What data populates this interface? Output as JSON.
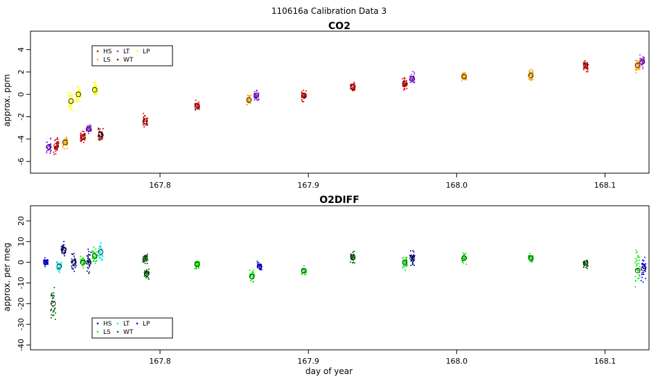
{
  "suptitle": "110616a   Calibration Data 3",
  "xlabel": "day of year",
  "legend_labels": [
    "HS",
    "LT",
    "LP",
    "LS",
    "WT"
  ],
  "colors": {
    "co2": {
      "HS": "#dd0000",
      "LS": "#ffa500",
      "LT": "#a020f0",
      "WT": "#8b0000",
      "LP": "#ffff00"
    },
    "o2": {
      "HS": "#00008b",
      "LS": "#00ee00",
      "LT": "#00eeee",
      "WT": "#006400",
      "LP": "#0000ff"
    }
  },
  "chart_data": [
    {
      "type": "scatter",
      "title": "CO2",
      "ylabel": "approx. ppm",
      "xlim": [
        167.715,
        168.125
      ],
      "ylim": [
        -6.8,
        5.4
      ],
      "xticks": [
        "167.8",
        "167.9",
        "168.0",
        "168.1"
      ],
      "yticks": [
        "-6",
        "-4",
        "-2",
        "0",
        "2",
        "4"
      ],
      "legend": {
        "position": "top-left",
        "entries": [
          "HS",
          "LS",
          "LT",
          "WT",
          "LP"
        ]
      },
      "clusters": [
        {
          "x": 167.725,
          "series": "LT",
          "mean": -4.7,
          "spread": 0.9
        },
        {
          "x": 167.73,
          "series": "HS",
          "mean": -4.6,
          "spread": 0.9
        },
        {
          "x": 167.736,
          "series": "LS",
          "mean": -4.3,
          "spread": 0.7
        },
        {
          "x": 167.74,
          "series": "LP",
          "mean": -0.6,
          "spread": 1.1
        },
        {
          "x": 167.745,
          "series": "LP",
          "mean": 0.0,
          "spread": 0.9
        },
        {
          "x": 167.748,
          "series": "HS",
          "mean": -3.8,
          "spread": 0.6
        },
        {
          "x": 167.752,
          "series": "LT",
          "mean": -3.1,
          "spread": 0.5
        },
        {
          "x": 167.756,
          "series": "LP",
          "mean": 0.4,
          "spread": 0.9
        },
        {
          "x": 167.76,
          "series": "WT",
          "mean": -3.6,
          "spread": 0.7
        },
        {
          "x": 167.79,
          "series": "HS",
          "mean": -2.4,
          "spread": 0.8
        },
        {
          "x": 167.825,
          "series": "HS",
          "mean": -1.1,
          "spread": 0.7
        },
        {
          "x": 167.86,
          "series": "LS",
          "mean": -0.5,
          "spread": 0.7
        },
        {
          "x": 167.865,
          "series": "LT",
          "mean": -0.1,
          "spread": 0.6
        },
        {
          "x": 167.897,
          "series": "HS",
          "mean": -0.1,
          "spread": 0.8
        },
        {
          "x": 167.93,
          "series": "HS",
          "mean": 0.6,
          "spread": 0.7
        },
        {
          "x": 167.965,
          "series": "HS",
          "mean": 1.0,
          "spread": 0.8
        },
        {
          "x": 167.97,
          "series": "LT",
          "mean": 1.4,
          "spread": 0.7
        },
        {
          "x": 168.005,
          "series": "LS",
          "mean": 1.6,
          "spread": 0.6
        },
        {
          "x": 168.05,
          "series": "LS",
          "mean": 1.7,
          "spread": 0.7
        },
        {
          "x": 168.087,
          "series": "HS",
          "mean": 2.6,
          "spread": 0.7
        },
        {
          "x": 168.122,
          "series": "LS",
          "mean": 2.6,
          "spread": 0.8
        },
        {
          "x": 168.125,
          "series": "LT",
          "mean": 2.9,
          "spread": 0.9
        }
      ]
    },
    {
      "type": "scatter",
      "title": "O2DIFF",
      "ylabel": "approx. per meg",
      "xlim": [
        167.715,
        168.125
      ],
      "ylim": [
        -41,
        26
      ],
      "xticks": [
        "167.8",
        "167.9",
        "168.0",
        "168.1"
      ],
      "yticks": [
        "-40",
        "-30",
        "-20",
        "-10",
        "0",
        "10",
        "20"
      ],
      "legend": {
        "position": "bottom-left",
        "entries": [
          "HS",
          "LS",
          "LT",
          "WT",
          "LP"
        ]
      },
      "clusters": [
        {
          "x": 167.723,
          "series": "LP",
          "mean": 0.0,
          "spread": 2.5
        },
        {
          "x": 167.728,
          "series": "WT",
          "mean": -20.0,
          "spread": 12.0
        },
        {
          "x": 167.732,
          "series": "LT",
          "mean": -2.0,
          "spread": 4.0
        },
        {
          "x": 167.735,
          "series": "HS",
          "mean": 6.0,
          "spread": 5.0
        },
        {
          "x": 167.742,
          "series": "HS",
          "mean": 0.0,
          "spread": 6.0
        },
        {
          "x": 167.748,
          "series": "LS",
          "mean": 0.0,
          "spread": 4.0
        },
        {
          "x": 167.752,
          "series": "HS",
          "mean": 0.0,
          "spread": 8.0
        },
        {
          "x": 167.756,
          "series": "LS",
          "mean": 3.0,
          "spread": 5.0
        },
        {
          "x": 167.76,
          "series": "LT",
          "mean": 5.0,
          "spread": 6.0
        },
        {
          "x": 167.79,
          "series": "WT",
          "mean": 2.0,
          "spread": 4.0
        },
        {
          "x": 167.791,
          "series": "WT",
          "mean": -5.5,
          "spread": 3.0
        },
        {
          "x": 167.825,
          "series": "LS",
          "mean": -1.0,
          "spread": 3.0
        },
        {
          "x": 167.862,
          "series": "LS",
          "mean": -7.0,
          "spread": 4.0
        },
        {
          "x": 167.867,
          "series": "LP",
          "mean": -2.0,
          "spread": 3.0
        },
        {
          "x": 167.897,
          "series": "LS",
          "mean": -4.0,
          "spread": 3.0
        },
        {
          "x": 167.93,
          "series": "WT",
          "mean": 2.5,
          "spread": 4.5
        },
        {
          "x": 167.965,
          "series": "LS",
          "mean": 0.0,
          "spread": 5.0
        },
        {
          "x": 167.97,
          "series": "HS",
          "mean": 2.0,
          "spread": 6.0
        },
        {
          "x": 168.005,
          "series": "LS",
          "mean": 2.0,
          "spread": 4.0
        },
        {
          "x": 168.05,
          "series": "LS",
          "mean": 2.0,
          "spread": 3.0
        },
        {
          "x": 168.087,
          "series": "WT",
          "mean": -0.5,
          "spread": 3.0
        },
        {
          "x": 168.122,
          "series": "LS",
          "mean": -4.0,
          "spread": 16.0
        },
        {
          "x": 168.126,
          "series": "LP",
          "mean": -3.0,
          "spread": 8.0
        }
      ]
    }
  ]
}
